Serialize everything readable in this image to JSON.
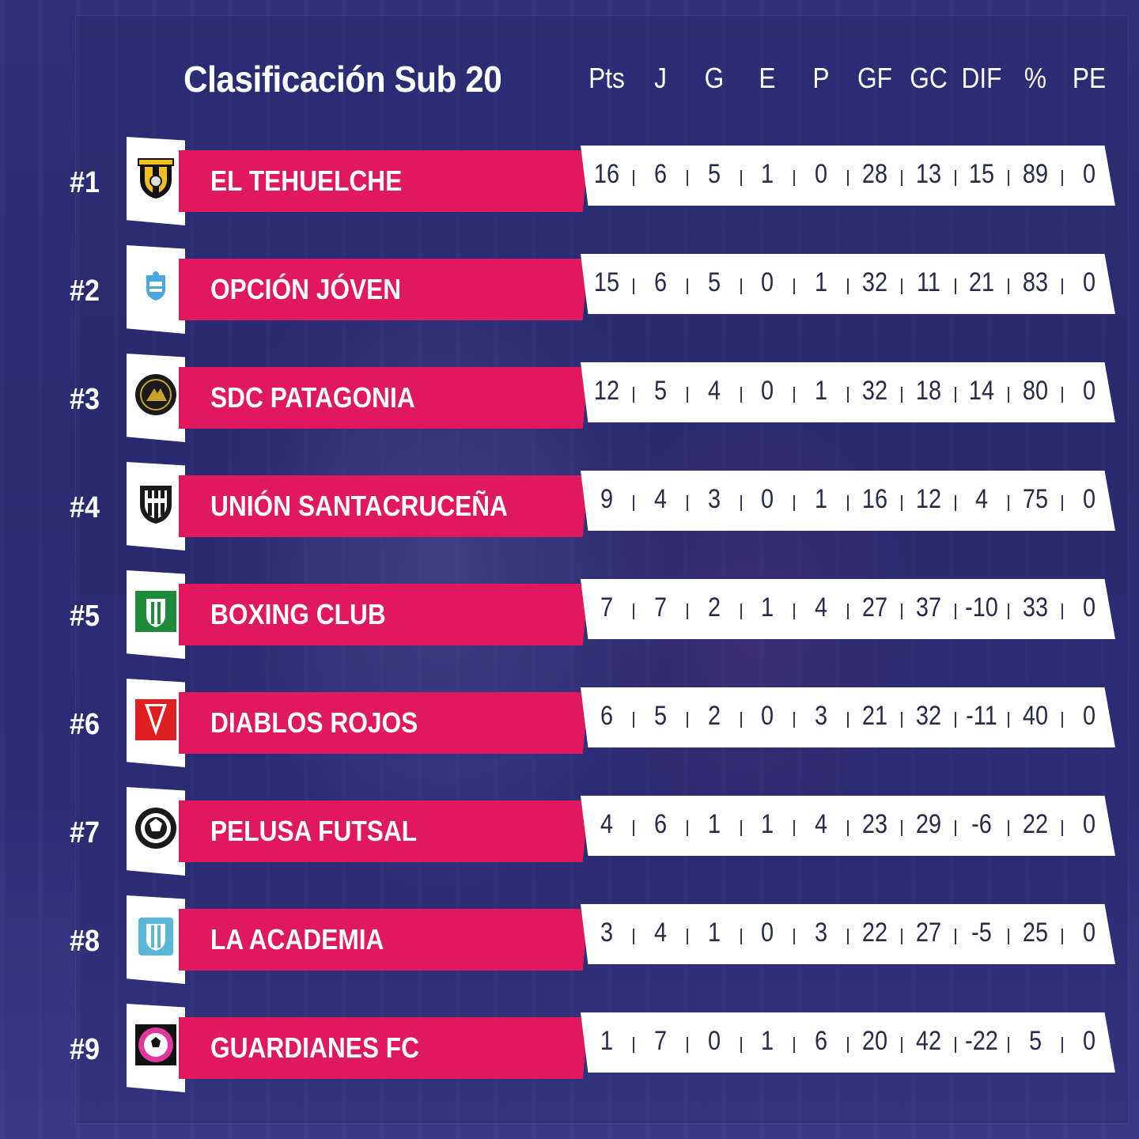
{
  "title": "Clasificación Sub 20",
  "columns": [
    "Pts",
    "J",
    "G",
    "E",
    "P",
    "GF",
    "GC",
    "DIF",
    "%",
    "PE"
  ],
  "colors": {
    "name_bar": "#e0185e",
    "stat_bar": "#ffffff",
    "background": "#2c2b72"
  },
  "rows": [
    {
      "rank": "#1",
      "team": "EL TEHUELCHE",
      "logo": "tehuelche-crest-icon",
      "stats": [
        "16",
        "6",
        "5",
        "1",
        "0",
        "28",
        "13",
        "15",
        "89",
        "0"
      ]
    },
    {
      "rank": "#2",
      "team": "OPCIÓN JÓVEN",
      "logo": "opcion-joven-crest-icon",
      "stats": [
        "15",
        "6",
        "5",
        "0",
        "1",
        "32",
        "11",
        "21",
        "83",
        "0"
      ]
    },
    {
      "rank": "#3",
      "team": "SDC PATAGONIA",
      "logo": "sdc-patagonia-crest-icon",
      "stats": [
        "12",
        "5",
        "4",
        "0",
        "1",
        "32",
        "18",
        "14",
        "80",
        "0"
      ]
    },
    {
      "rank": "#4",
      "team": "UNIÓN SANTACRUCEÑA",
      "logo": "union-santacrucena-crest-icon",
      "stats": [
        "9",
        "4",
        "3",
        "0",
        "1",
        "16",
        "12",
        "4",
        "75",
        "0"
      ]
    },
    {
      "rank": "#5",
      "team": "BOXING CLUB",
      "logo": "boxing-club-crest-icon",
      "stats": [
        "7",
        "7",
        "2",
        "1",
        "4",
        "27",
        "37",
        "-10",
        "33",
        "0"
      ]
    },
    {
      "rank": "#6",
      "team": "DIABLOS ROJOS",
      "logo": "diablos-rojos-crest-icon",
      "stats": [
        "6",
        "5",
        "2",
        "0",
        "3",
        "21",
        "32",
        "-11",
        "40",
        "0"
      ]
    },
    {
      "rank": "#7",
      "team": "PELUSA FUTSAL",
      "logo": "pelusa-futsal-crest-icon",
      "stats": [
        "4",
        "6",
        "1",
        "1",
        "4",
        "23",
        "29",
        "-6",
        "22",
        "0"
      ]
    },
    {
      "rank": "#8",
      "team": "LA ACADEMIA",
      "logo": "la-academia-crest-icon",
      "stats": [
        "3",
        "4",
        "1",
        "0",
        "3",
        "22",
        "27",
        "-5",
        "25",
        "0"
      ]
    },
    {
      "rank": "#9",
      "team": "GUARDIANES FC",
      "logo": "guardianes-fc-crest-icon",
      "stats": [
        "1",
        "7",
        "0",
        "1",
        "6",
        "20",
        "42",
        "-22",
        "5",
        "0"
      ]
    }
  ]
}
